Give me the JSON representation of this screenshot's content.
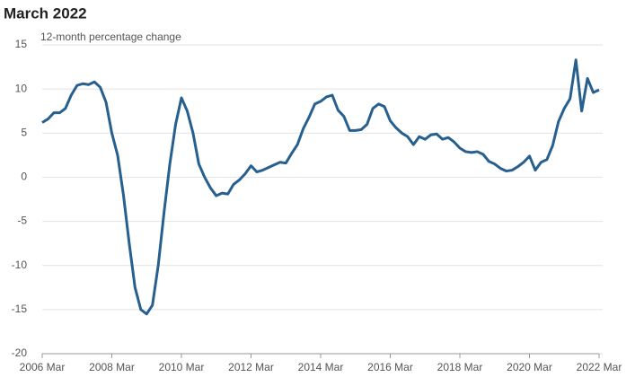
{
  "chart_data": {
    "type": "line",
    "title": "March 2022",
    "subtitle": "12-month percentage change",
    "categories": [
      "2006 Mar",
      null,
      null,
      null,
      null,
      null,
      null,
      null,
      null,
      null,
      null,
      null,
      "2008 Mar",
      null,
      null,
      null,
      null,
      null,
      null,
      null,
      null,
      null,
      null,
      null,
      "2010 Mar",
      null,
      null,
      null,
      null,
      null,
      null,
      null,
      null,
      null,
      null,
      null,
      "2012 Mar",
      null,
      null,
      null,
      null,
      null,
      null,
      null,
      null,
      null,
      null,
      null,
      "2014 Mar",
      null,
      null,
      null,
      null,
      null,
      null,
      null,
      null,
      null,
      null,
      null,
      "2016 Mar",
      null,
      null,
      null,
      null,
      null,
      null,
      null,
      null,
      null,
      null,
      null,
      "2018 Mar",
      null,
      null,
      null,
      null,
      null,
      null,
      null,
      null,
      null,
      null,
      null,
      "2020 Mar",
      null,
      null,
      null,
      null,
      null,
      null,
      null,
      null,
      null,
      null,
      null,
      "2022 Mar"
    ],
    "values": [
      6.2,
      6.6,
      7.3,
      7.3,
      7.8,
      9.3,
      10.4,
      10.6,
      10.5,
      10.8,
      10.2,
      8.5,
      5.0,
      2.5,
      -2,
      -7.5,
      -12.5,
      -15,
      -15.5,
      -14.5,
      -10,
      -4,
      1.5,
      6,
      9.0,
      7.5,
      5,
      1.5,
      0,
      -1.2,
      -2.1,
      -1.8,
      -1.9,
      -0.8,
      -0.3,
      0.4,
      1.3,
      0.6,
      0.8,
      1.1,
      1.4,
      1.7,
      1.6,
      2.7,
      3.7,
      5.5,
      6.8,
      8.3,
      8.6,
      9.1,
      9.3,
      7.6,
      6.9,
      5.3,
      5.3,
      5.4,
      6.0,
      7.8,
      8.3,
      8.0,
      6.4,
      5.6,
      5.0,
      4.6,
      3.7,
      4.6,
      4.3,
      4.8,
      4.9,
      4.3,
      4.5,
      4.0,
      3.3,
      2.9,
      2.8,
      2.9,
      2.6,
      1.8,
      1.5,
      1.0,
      0.7,
      0.8,
      1.2,
      1.7,
      2.4,
      0.8,
      1.7,
      2.0,
      3.6,
      6.3,
      7.8,
      8.9,
      13.3,
      7.5,
      11.2,
      9.6,
      9.9
    ],
    "color": "#27608f",
    "ylim": [
      -20,
      15
    ],
    "yticks": [
      -20,
      -15,
      -10,
      -5,
      0,
      5,
      10,
      15
    ],
    "grid": true
  }
}
